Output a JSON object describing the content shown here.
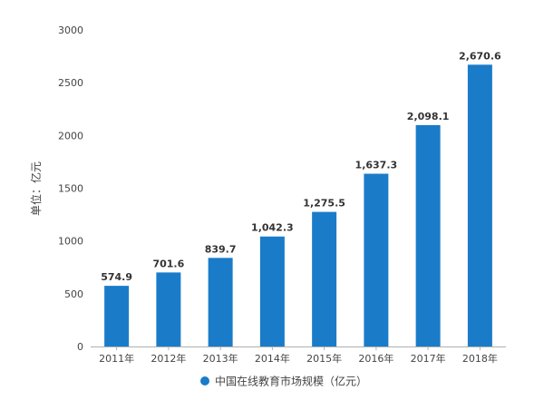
{
  "chart_data": {
    "type": "bar",
    "title": "",
    "xlabel": "",
    "ylabel": "单位：亿元",
    "categories": [
      "2011年",
      "2012年",
      "2013年",
      "2014年",
      "2015年",
      "2016年",
      "2017年",
      "2018年"
    ],
    "series": [
      {
        "name": "中国在线教育市场规模（亿元）",
        "values": [
          574.9,
          701.6,
          839.7,
          1042.3,
          1275.5,
          1637.3,
          2098.1,
          2670.6
        ],
        "value_labels": [
          "574.9",
          "701.6",
          "839.7",
          "1,042.3",
          "1,275.5",
          "1,637.3",
          "2,098.1",
          "2,670.6"
        ]
      }
    ],
    "ylim": [
      0,
      3000
    ],
    "yticks": [
      0,
      500,
      1000,
      1500,
      2000,
      2500,
      3000
    ],
    "ytick_labels": [
      "0",
      "500",
      "1000",
      "1500",
      "2000",
      "2500",
      "3000"
    ],
    "grid": false,
    "legend_position": "bottom-center"
  },
  "colors": {
    "bar": "#1a7cc9",
    "axis": "#b0b0b0",
    "text": "#444444",
    "value_label": "#333333"
  }
}
